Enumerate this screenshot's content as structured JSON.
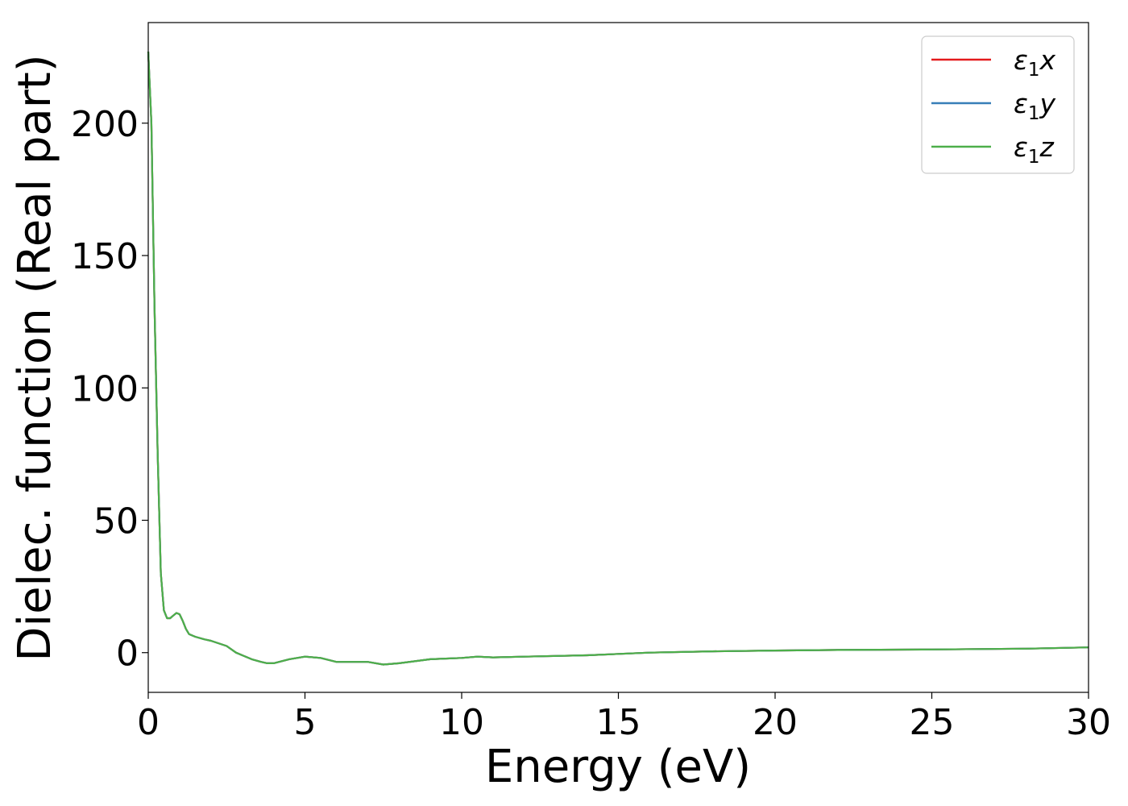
{
  "chart_data": {
    "type": "line",
    "xlabel": "Energy (eV)",
    "ylabel": "Dielec. function (Real part)",
    "xlim": [
      0,
      30
    ],
    "ylim": [
      -15,
      238
    ],
    "xticks": [
      0,
      5,
      10,
      15,
      20,
      25,
      30
    ],
    "yticks": [
      0,
      50,
      100,
      150,
      200
    ],
    "grid": false,
    "legend_position": "top-right",
    "series": [
      {
        "name": "ε₁x",
        "legend_main": "ε",
        "legend_sub": "1",
        "legend_suffix": "x",
        "color": "#e41a1c",
        "x": [
          0.0,
          0.1,
          0.2,
          0.3,
          0.4,
          0.5,
          0.6,
          0.7,
          0.8,
          0.9,
          1.0,
          1.1,
          1.2,
          1.3,
          1.5,
          1.8,
          2.0,
          2.5,
          2.8,
          3.0,
          3.3,
          3.6,
          3.8,
          4.0,
          4.5,
          5.0,
          5.5,
          6.0,
          7.0,
          7.5,
          8.0,
          9.0,
          10.0,
          10.5,
          11.0,
          12.0,
          14.0,
          16.0,
          18.0,
          20.0,
          22.0,
          25.0,
          28.0,
          30.0
        ],
        "y": [
          227,
          200,
          130,
          75,
          30,
          16,
          13,
          13,
          14,
          15,
          14.5,
          12,
          9,
          7,
          6,
          5,
          4.5,
          2.5,
          0,
          -1,
          -2.5,
          -3.5,
          -4,
          -4,
          -2.5,
          -1.5,
          -2,
          -3.5,
          -3.5,
          -4.5,
          -4,
          -2.5,
          -2,
          -1.5,
          -1.8,
          -1.5,
          -1,
          0,
          0.5,
          0.8,
          1,
          1.2,
          1.5,
          2
        ]
      },
      {
        "name": "ε₁y",
        "legend_main": "ε",
        "legend_sub": "1",
        "legend_suffix": "y",
        "color": "#377eb8",
        "x": [
          0.0,
          0.1,
          0.2,
          0.3,
          0.4,
          0.5,
          0.6,
          0.7,
          0.8,
          0.9,
          1.0,
          1.1,
          1.2,
          1.3,
          1.5,
          1.8,
          2.0,
          2.5,
          2.8,
          3.0,
          3.3,
          3.6,
          3.8,
          4.0,
          4.5,
          5.0,
          5.5,
          6.0,
          7.0,
          7.5,
          8.0,
          9.0,
          10.0,
          10.5,
          11.0,
          12.0,
          14.0,
          16.0,
          18.0,
          20.0,
          22.0,
          25.0,
          28.0,
          30.0
        ],
        "y": [
          227,
          200,
          130,
          75,
          30,
          16,
          13,
          13,
          14,
          15,
          14.5,
          12,
          9,
          7,
          6,
          5,
          4.5,
          2.5,
          0,
          -1,
          -2.5,
          -3.5,
          -4,
          -4,
          -2.5,
          -1.5,
          -2,
          -3.5,
          -3.5,
          -4.5,
          -4,
          -2.5,
          -2,
          -1.5,
          -1.8,
          -1.5,
          -1,
          0,
          0.5,
          0.8,
          1,
          1.2,
          1.5,
          2
        ]
      },
      {
        "name": "ε₁z",
        "legend_main": "ε",
        "legend_sub": "1",
        "legend_suffix": "z",
        "color": "#4daf4a",
        "x": [
          0.0,
          0.1,
          0.2,
          0.3,
          0.4,
          0.5,
          0.6,
          0.7,
          0.8,
          0.9,
          1.0,
          1.1,
          1.2,
          1.3,
          1.5,
          1.8,
          2.0,
          2.5,
          2.8,
          3.0,
          3.3,
          3.6,
          3.8,
          4.0,
          4.5,
          5.0,
          5.5,
          6.0,
          7.0,
          7.5,
          8.0,
          9.0,
          10.0,
          10.5,
          11.0,
          12.0,
          14.0,
          16.0,
          18.0,
          20.0,
          22.0,
          25.0,
          28.0,
          30.0
        ],
        "y": [
          227,
          200,
          130,
          75,
          30,
          16,
          13,
          13,
          14,
          15,
          14.5,
          12,
          9,
          7,
          6,
          5,
          4.5,
          2.5,
          0,
          -1,
          -2.5,
          -3.5,
          -4,
          -4,
          -2.5,
          -1.5,
          -2,
          -3.5,
          -3.5,
          -4.5,
          -4,
          -2.5,
          -2,
          -1.5,
          -1.8,
          -1.5,
          -1,
          0,
          0.5,
          0.8,
          1,
          1.2,
          1.5,
          2
        ]
      }
    ]
  }
}
